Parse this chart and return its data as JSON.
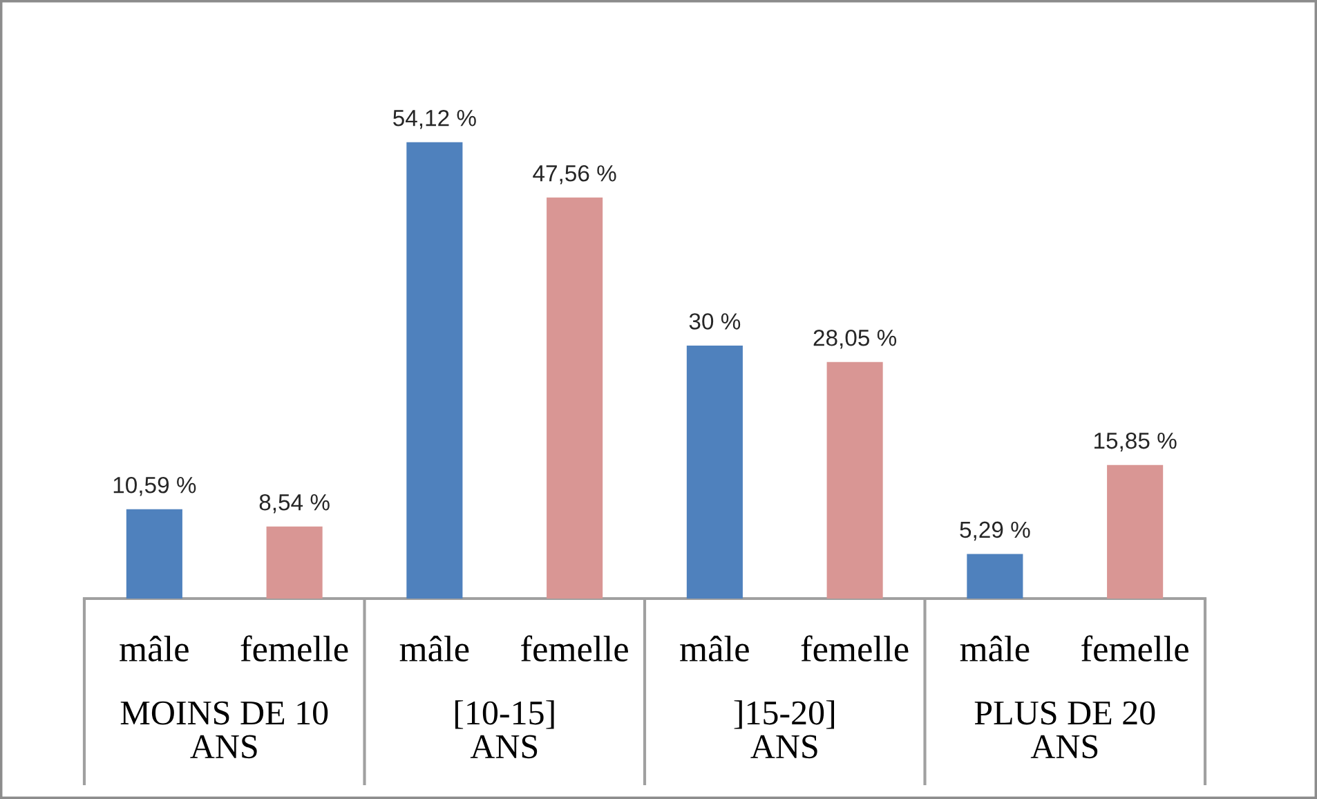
{
  "chart_data": {
    "type": "bar",
    "categories": [
      "MOINS DE 10 ANS",
      "[10-15] ANS",
      "]15-20] ANS",
      "PLUS DE 20 ANS"
    ],
    "series": [
      {
        "name": "mâle",
        "color": "#4f81bd",
        "values": [
          10.59,
          54.12,
          30,
          5.29
        ],
        "value_labels": [
          "10,59 %",
          "54,12 %",
          "30 %",
          "5,29 %"
        ]
      },
      {
        "name": "femelle",
        "color": "#d99694",
        "values": [
          8.54,
          47.56,
          28.05,
          15.85
        ],
        "value_labels": [
          "8,54 %",
          "47,56 %",
          "28,05 %",
          "15,85 %"
        ]
      }
    ],
    "legend": false,
    "grid": false
  }
}
